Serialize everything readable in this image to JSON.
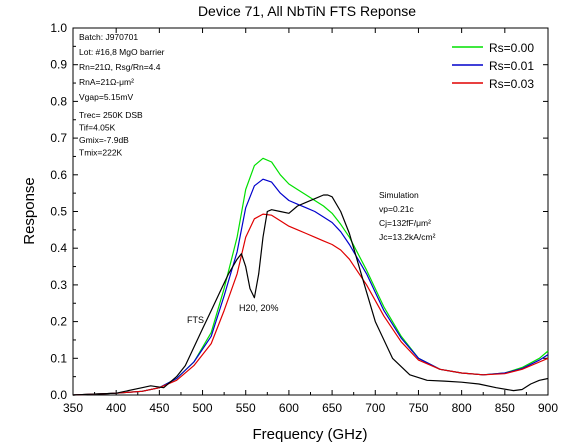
{
  "chart_data": {
    "type": "line",
    "title": "Device 71, All NbTiN FTS Reponse",
    "xlabel": "Frequency (GHz)",
    "ylabel": "Response",
    "xlim": [
      350,
      900
    ],
    "ylim": [
      0,
      1.0
    ],
    "xticks": [
      "350",
      "400",
      "450",
      "500",
      "550",
      "600",
      "650",
      "700",
      "750",
      "800",
      "850",
      "900"
    ],
    "yticks": [
      "0.0",
      "0.1",
      "0.2",
      "0.3",
      "0.4",
      "0.5",
      "0.6",
      "0.7",
      "0.8",
      "0.9",
      "1.0"
    ],
    "grid": false,
    "legend_position": "top-right",
    "series": [
      {
        "name": "Rs=0.00",
        "color": "#00e000",
        "x": [
          350,
          400,
          430,
          450,
          470,
          490,
          510,
          525,
          540,
          550,
          560,
          570,
          580,
          590,
          600,
          610,
          620,
          630,
          640,
          650,
          660,
          670,
          690,
          710,
          730,
          750,
          775,
          800,
          825,
          850,
          870,
          890,
          900
        ],
        "y": [
          0.0,
          0.005,
          0.01,
          0.02,
          0.045,
          0.09,
          0.17,
          0.29,
          0.43,
          0.56,
          0.625,
          0.645,
          0.635,
          0.6,
          0.575,
          0.56,
          0.545,
          0.53,
          0.515,
          0.495,
          0.465,
          0.43,
          0.34,
          0.24,
          0.16,
          0.1,
          0.07,
          0.06,
          0.055,
          0.06,
          0.075,
          0.1,
          0.12
        ]
      },
      {
        "name": "Rs=0.01",
        "color": "#0000cc",
        "x": [
          350,
          400,
          430,
          450,
          470,
          490,
          510,
          525,
          540,
          550,
          560,
          570,
          580,
          590,
          600,
          610,
          620,
          630,
          640,
          650,
          660,
          670,
          690,
          710,
          730,
          750,
          775,
          800,
          825,
          850,
          870,
          890,
          900
        ],
        "y": [
          0.0,
          0.005,
          0.01,
          0.02,
          0.045,
          0.09,
          0.16,
          0.27,
          0.39,
          0.51,
          0.57,
          0.588,
          0.58,
          0.55,
          0.53,
          0.52,
          0.51,
          0.5,
          0.485,
          0.47,
          0.445,
          0.41,
          0.33,
          0.23,
          0.155,
          0.1,
          0.07,
          0.06,
          0.055,
          0.06,
          0.072,
          0.095,
          0.11
        ]
      },
      {
        "name": "Rs=0.03",
        "color": "#e00000",
        "x": [
          350,
          400,
          430,
          450,
          470,
          490,
          510,
          525,
          540,
          550,
          560,
          570,
          580,
          590,
          600,
          610,
          620,
          630,
          640,
          650,
          660,
          670,
          690,
          710,
          730,
          750,
          775,
          800,
          825,
          850,
          870,
          890,
          900
        ],
        "y": [
          0.0,
          0.005,
          0.01,
          0.02,
          0.04,
          0.08,
          0.14,
          0.23,
          0.33,
          0.43,
          0.48,
          0.493,
          0.49,
          0.475,
          0.46,
          0.45,
          0.44,
          0.43,
          0.42,
          0.41,
          0.395,
          0.37,
          0.3,
          0.215,
          0.145,
          0.095,
          0.07,
          0.06,
          0.055,
          0.058,
          0.07,
          0.09,
          0.1
        ]
      },
      {
        "name": "FTS",
        "color": "#000000",
        "x": [
          350,
          400,
          430,
          440,
          455,
          470,
          480,
          490,
          500,
          510,
          520,
          530,
          540,
          545,
          550,
          555,
          560,
          565,
          570,
          575,
          580,
          590,
          600,
          610,
          620,
          630,
          640,
          645,
          650,
          660,
          670,
          680,
          690,
          700,
          720,
          740,
          760,
          780,
          800,
          820,
          840,
          860,
          870,
          880,
          890,
          900
        ],
        "y": [
          0.0,
          0.005,
          0.02,
          0.025,
          0.02,
          0.05,
          0.08,
          0.13,
          0.18,
          0.23,
          0.28,
          0.33,
          0.37,
          0.385,
          0.35,
          0.29,
          0.265,
          0.33,
          0.43,
          0.5,
          0.505,
          0.5,
          0.495,
          0.515,
          0.525,
          0.535,
          0.545,
          0.545,
          0.54,
          0.5,
          0.44,
          0.36,
          0.28,
          0.2,
          0.1,
          0.055,
          0.04,
          0.038,
          0.035,
          0.03,
          0.02,
          0.012,
          0.015,
          0.03,
          0.04,
          0.045
        ]
      }
    ],
    "annotations": {
      "params_top": [
        "Batch: J970701",
        "Lot: #16,8 MgO barrier",
        "Rn=21Ω,  Rsg/Rn=4.4",
        "RnA=21Ω-μm²",
        "Vgap=5.15mV"
      ],
      "params_bottom": [
        "Trec= 250K DSB",
        "Tif=4.05K",
        "Gmix=-7.9dB",
        "Tmix=222K"
      ],
      "simulation": [
        "Simulation",
        "vp=0.21c",
        "Cj=132fF/μm²",
        "Jc=13.2kA/cm²"
      ],
      "fts_label": "FTS",
      "h2o_label": "H20, 20%"
    }
  }
}
